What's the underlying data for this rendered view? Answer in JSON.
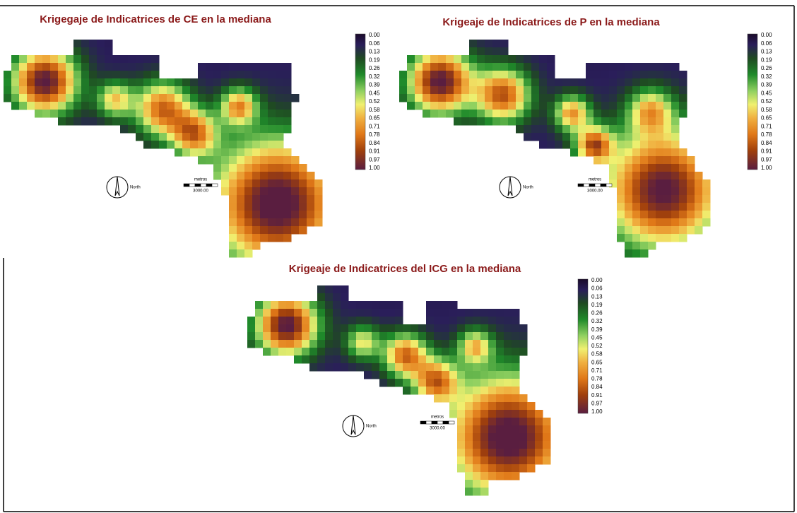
{
  "maps": [
    {
      "title": "Krigegaje de Indicatrices de CE en la mediana",
      "legend_labels": [
        "0.00",
        "0.06",
        "0.13",
        "0.19",
        "0.26",
        "0.32",
        "0.39",
        "0.45",
        "0.52",
        "0.58",
        "0.65",
        "0.71",
        "0.78",
        "0.84",
        "0.91",
        "0.97",
        "1.00"
      ],
      "north_label": "North",
      "scale_title": "metros",
      "scale_value": "3000.00"
    },
    {
      "title": "Krigeaje de Indicatrices de P  en la mediana",
      "legend_labels": [
        "0.00",
        "0.06",
        "0.13",
        "0.19",
        "0.26",
        "0.32",
        "0.39",
        "0.45",
        "0.52",
        "0.58",
        "0.65",
        "0.71",
        "0.78",
        "0.84",
        "0.91",
        "0.97",
        "1.00"
      ],
      "north_label": "North",
      "scale_title": "metros",
      "scale_value": "3000.00"
    },
    {
      "title": "Krigeaje de Indicatrices del ICG en la mediana",
      "legend_labels": [
        "0.00",
        "0.06",
        "0.13",
        "0.19",
        "0.26",
        "0.32",
        "0.39",
        "0.45",
        "0.52",
        "0.58",
        "0.65",
        "0.71",
        "0.78",
        "0.84",
        "0.91",
        "0.97",
        "1.00"
      ],
      "north_label": "North",
      "scale_title": "metros",
      "scale_value": "3000.00"
    }
  ]
}
